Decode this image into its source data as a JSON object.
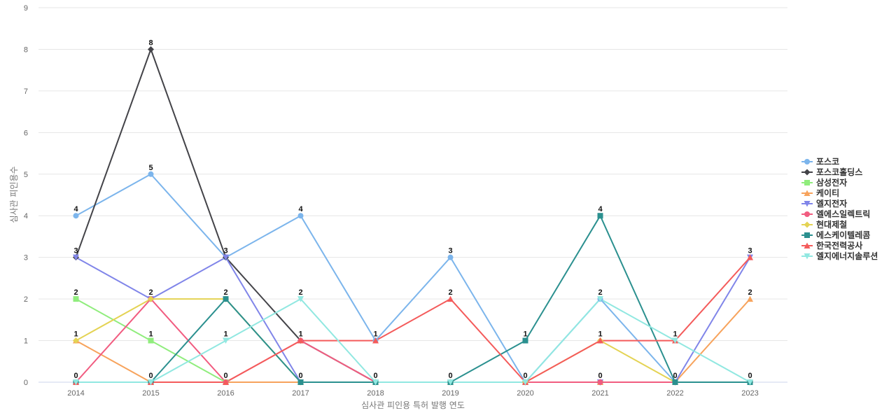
{
  "chart_data": {
    "type": "line",
    "title": "",
    "xlabel": "심사관 피인용 특허 발행 연도",
    "ylabel": "심사관 피인용수",
    "x": [
      "2014",
      "2015",
      "2016",
      "2017",
      "2018",
      "2019",
      "2020",
      "2021",
      "2022",
      "2023"
    ],
    "ylim": [
      0,
      9
    ],
    "yticks": [
      0,
      1,
      2,
      3,
      4,
      5,
      6,
      7,
      8,
      9
    ],
    "grid": "horizontal",
    "legend_position": "right",
    "series": [
      {
        "name": "포스코",
        "color": "#7cb5ec",
        "marker": "circle",
        "values": [
          4,
          5,
          3,
          4,
          1,
          3,
          0,
          2,
          0,
          0
        ]
      },
      {
        "name": "포스코홀딩스",
        "color": "#434348",
        "marker": "diamond",
        "values": [
          3,
          8,
          3,
          1,
          0,
          0,
          0,
          0,
          0,
          0
        ]
      },
      {
        "name": "삼성전자",
        "color": "#90ed7d",
        "marker": "square",
        "values": [
          2,
          1,
          0,
          0,
          0,
          0,
          0,
          0,
          0,
          0
        ]
      },
      {
        "name": "케이티",
        "color": "#f7a35c",
        "marker": "triangle",
        "values": [
          1,
          0,
          0,
          0,
          0,
          0,
          0,
          0,
          0,
          2
        ]
      },
      {
        "name": "엘지전자",
        "color": "#8085e9",
        "marker": "triangle-down",
        "values": [
          3,
          2,
          3,
          0,
          0,
          0,
          0,
          0,
          0,
          3
        ]
      },
      {
        "name": "엘에스일렉트릭",
        "color": "#f15c80",
        "marker": "circle",
        "values": [
          0,
          2,
          0,
          1,
          0,
          0,
          0,
          0,
          0,
          0
        ]
      },
      {
        "name": "현대제철",
        "color": "#e4d354",
        "marker": "diamond",
        "values": [
          1,
          2,
          2,
          0,
          0,
          0,
          0,
          1,
          0,
          0
        ]
      },
      {
        "name": "에스케이텔레콤",
        "color": "#2b908f",
        "marker": "square",
        "values": [
          0,
          0,
          2,
          0,
          0,
          0,
          1,
          4,
          0,
          0
        ]
      },
      {
        "name": "한국전력공사",
        "color": "#f45b5b",
        "marker": "triangle",
        "values": [
          0,
          0,
          0,
          1,
          1,
          2,
          0,
          1,
          1,
          3
        ]
      },
      {
        "name": "엘지에너지솔루션",
        "color": "#91e8e1",
        "marker": "triangle-down",
        "values": [
          0,
          0,
          1,
          2,
          0,
          0,
          0,
          2,
          1,
          0
        ]
      }
    ],
    "point_labels": [
      {
        "x": "2014",
        "text": "4",
        "value": 4
      },
      {
        "x": "2014",
        "text": "3",
        "value": 3
      },
      {
        "x": "2014",
        "text": "2",
        "value": 2
      },
      {
        "x": "2014",
        "text": "1",
        "value": 1
      },
      {
        "x": "2014",
        "text": "0",
        "value": 0
      },
      {
        "x": "2015",
        "text": "8",
        "value": 8
      },
      {
        "x": "2015",
        "text": "5",
        "value": 5
      },
      {
        "x": "2015",
        "text": "2",
        "value": 2
      },
      {
        "x": "2015",
        "text": "1",
        "value": 1
      },
      {
        "x": "2015",
        "text": "0",
        "value": 0
      },
      {
        "x": "2016",
        "text": "3",
        "value": 3
      },
      {
        "x": "2016",
        "text": "2",
        "value": 2
      },
      {
        "x": "2016",
        "text": "1",
        "value": 1
      },
      {
        "x": "2016",
        "text": "0",
        "value": 0
      },
      {
        "x": "2017",
        "text": "4",
        "value": 4
      },
      {
        "x": "2017",
        "text": "2",
        "value": 2
      },
      {
        "x": "2017",
        "text": "1",
        "value": 1
      },
      {
        "x": "2017",
        "text": "0",
        "value": 0
      },
      {
        "x": "2018",
        "text": "1",
        "value": 1
      },
      {
        "x": "2018",
        "text": "0",
        "value": 0
      },
      {
        "x": "2019",
        "text": "3",
        "value": 3
      },
      {
        "x": "2019",
        "text": "2",
        "value": 2
      },
      {
        "x": "2019",
        "text": "0",
        "value": 0
      },
      {
        "x": "2020",
        "text": "1",
        "value": 1
      },
      {
        "x": "2020",
        "text": "0",
        "value": 0
      },
      {
        "x": "2021",
        "text": "4",
        "value": 4
      },
      {
        "x": "2021",
        "text": "2",
        "value": 2
      },
      {
        "x": "2021",
        "text": "1",
        "value": 1
      },
      {
        "x": "2021",
        "text": "0",
        "value": 0
      },
      {
        "x": "2022",
        "text": "1",
        "value": 1
      },
      {
        "x": "2022",
        "text": "0",
        "value": 0
      },
      {
        "x": "2023",
        "text": "3",
        "value": 3
      },
      {
        "x": "2023",
        "text": "2",
        "value": 2
      },
      {
        "x": "2023",
        "text": "0",
        "value": 0
      }
    ]
  }
}
